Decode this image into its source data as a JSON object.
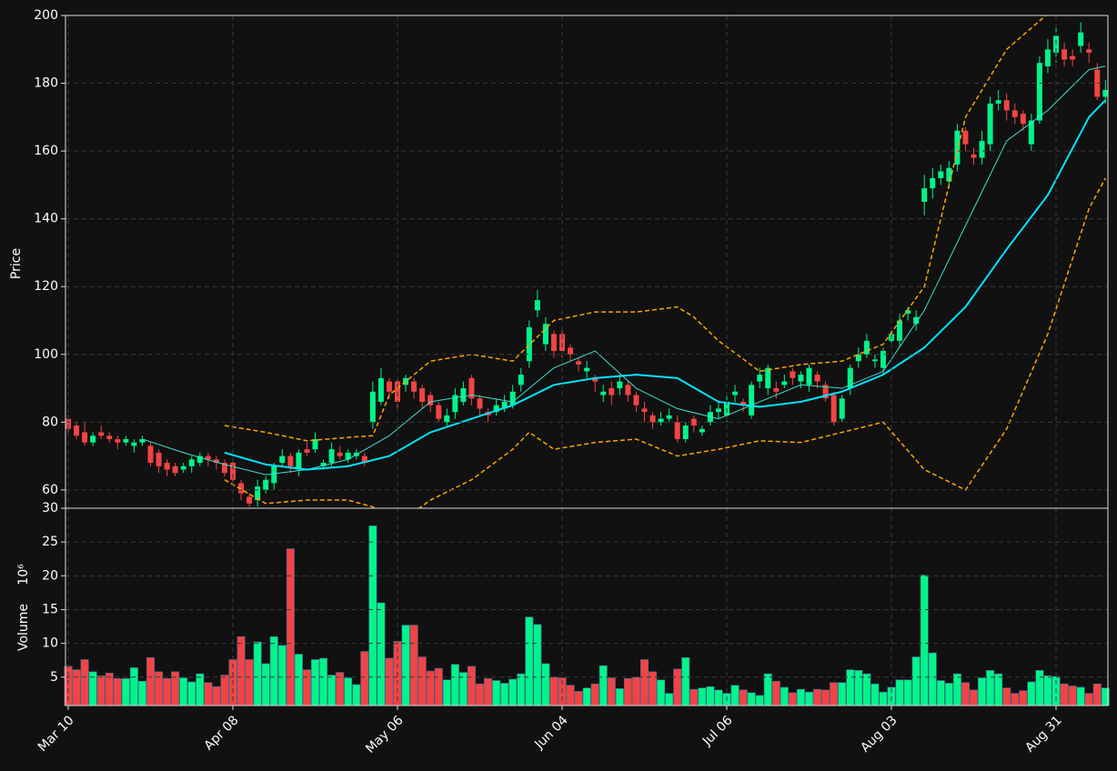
{
  "chart_data": {
    "type": "candlestick",
    "categories": [
      "Mar 10",
      null,
      null,
      null,
      null,
      null,
      null,
      null,
      null,
      null,
      null,
      null,
      null,
      null,
      null,
      null,
      null,
      null,
      null,
      null,
      "Apr 08",
      null,
      null,
      null,
      null,
      null,
      null,
      null,
      null,
      null,
      null,
      null,
      null,
      null,
      null,
      null,
      null,
      null,
      null,
      null,
      "May 06",
      null,
      null,
      null,
      null,
      null,
      null,
      null,
      null,
      null,
      null,
      null,
      null,
      null,
      null,
      null,
      null,
      null,
      null,
      null,
      "Jun 04",
      null,
      null,
      null,
      null,
      null,
      null,
      null,
      null,
      null,
      null,
      null,
      null,
      null,
      null,
      null,
      null,
      null,
      null,
      null,
      "Jul 06",
      null,
      null,
      null,
      null,
      null,
      null,
      null,
      null,
      null,
      null,
      null,
      null,
      null,
      null,
      null,
      null,
      null,
      null,
      null,
      "Aug 03",
      null,
      null,
      null,
      null,
      null,
      null,
      null,
      null,
      null,
      null,
      null,
      null,
      null,
      null,
      null,
      null,
      null,
      null,
      null,
      "Aug 31",
      null,
      null,
      null,
      null,
      null,
      null
    ],
    "open": [
      81,
      79,
      77,
      74,
      77,
      76,
      75,
      74,
      73,
      74,
      73,
      71,
      68,
      67,
      66,
      67,
      68,
      70,
      69,
      68,
      68,
      62,
      58,
      57,
      60,
      62,
      68,
      70,
      66,
      72,
      72,
      67,
      68,
      71,
      69,
      70,
      70,
      80,
      86,
      92,
      92,
      91,
      92,
      90,
      88,
      85,
      80,
      83,
      86,
      93,
      87,
      83,
      83,
      84,
      85,
      91,
      98,
      113,
      103,
      106,
      106,
      102,
      98,
      95,
      93,
      88,
      90,
      90,
      91,
      88,
      84,
      82,
      80,
      81,
      80,
      75,
      81,
      77,
      80,
      83,
      82,
      88,
      86,
      82,
      92,
      90,
      90,
      91,
      95,
      92,
      91,
      94,
      91,
      88,
      81,
      90,
      98,
      100,
      98,
      96,
      104,
      104,
      112,
      109,
      145,
      149,
      152,
      151,
      156,
      166,
      159,
      158,
      162,
      174,
      175,
      172,
      171,
      162,
      169,
      185,
      189,
      190,
      188,
      191,
      190,
      184,
      176
    ],
    "close": [
      78,
      76,
      74,
      76,
      76,
      75,
      74,
      75,
      74,
      75,
      68,
      67,
      66,
      65,
      67,
      69,
      70,
      69,
      68,
      65,
      63,
      59,
      56,
      61,
      63,
      67,
      70,
      67,
      71,
      71,
      75,
      68,
      72,
      70,
      71,
      71,
      68,
      89,
      93,
      89,
      86,
      93,
      89,
      86,
      85,
      81,
      82,
      88,
      90,
      87,
      84,
      82,
      85,
      86,
      89,
      94,
      108,
      116,
      109,
      101,
      101,
      100,
      97,
      96,
      92,
      89,
      88,
      92,
      88,
      85,
      83,
      80,
      81,
      82,
      75,
      79,
      79,
      78,
      83,
      84,
      86,
      89,
      85,
      91,
      94,
      96,
      89,
      92,
      93,
      94,
      96,
      92,
      87,
      80,
      87,
      96,
      100,
      104,
      98.5,
      101,
      106,
      110,
      113,
      111,
      149,
      152,
      154,
      155,
      166,
      162,
      158,
      163,
      174,
      175,
      172,
      170,
      168,
      169,
      186,
      190,
      194,
      187,
      187,
      195,
      189,
      176,
      178
    ],
    "high": [
      82,
      80,
      80,
      77,
      79,
      77,
      76,
      76,
      75,
      76,
      74,
      72,
      69,
      68,
      68,
      70,
      71,
      71,
      70,
      69,
      69,
      63,
      59,
      63,
      64,
      68,
      72,
      71,
      72,
      74,
      77,
      69,
      74,
      73,
      72,
      72,
      71,
      92,
      96,
      93,
      93,
      94,
      93,
      91,
      89,
      86,
      84,
      90,
      92,
      94,
      88,
      84,
      87,
      88,
      91,
      96,
      110,
      119,
      111,
      107,
      107,
      103,
      99,
      98,
      94,
      91,
      92,
      94,
      92,
      89,
      86,
      83,
      83,
      84,
      82,
      80,
      82,
      79,
      85,
      86,
      88,
      91,
      87,
      92,
      96,
      97,
      92,
      94,
      96,
      95,
      97,
      95,
      92,
      89,
      88,
      97,
      102,
      106,
      100,
      102,
      108,
      112,
      114,
      113,
      153,
      155,
      156,
      157,
      168,
      167,
      161,
      166,
      176,
      178,
      177,
      174,
      172,
      171,
      188,
      193,
      197,
      192,
      190,
      198,
      192,
      186,
      181
    ],
    "low": [
      77,
      75,
      73,
      73,
      75,
      74,
      72,
      73,
      71,
      73,
      67,
      65,
      64,
      64,
      65,
      65,
      67,
      67,
      66,
      64,
      61,
      57,
      55,
      55,
      59,
      60,
      67,
      65,
      64,
      70,
      71,
      66,
      67,
      69,
      68,
      69,
      67,
      78,
      85,
      87,
      84,
      89,
      87,
      84,
      83,
      80,
      79,
      81,
      85,
      85,
      82,
      80,
      82,
      83,
      84,
      89,
      96,
      111,
      101,
      99,
      99,
      98,
      95,
      93,
      89,
      86,
      85,
      88,
      86,
      83,
      80,
      78,
      79,
      80,
      74,
      74,
      77,
      76,
      79,
      81,
      80,
      86,
      83,
      81,
      90,
      88,
      87,
      90,
      91,
      90,
      89,
      90,
      86,
      79,
      80,
      88,
      96,
      99,
      96,
      94,
      102,
      102,
      110,
      107,
      141,
      146,
      150,
      149,
      154,
      160,
      156,
      156,
      160,
      172,
      169,
      168,
      166,
      160,
      168,
      183,
      186,
      185,
      185,
      189,
      186,
      175,
      174
    ],
    "volume": [
      6.6,
      6.1,
      7.6,
      5.8,
      5.2,
      5.6,
      4.8,
      4.8,
      6.4,
      4.4,
      7.9,
      5.8,
      4.8,
      5.8,
      4.9,
      4.3,
      5.5,
      4.2,
      3.6,
      5.3,
      7.6,
      11,
      7.6,
      10.2,
      7,
      11,
      9.7,
      24,
      8.4,
      6.1,
      7.6,
      7.8,
      5.3,
      5.7,
      4.9,
      3.9,
      8.8,
      27.4,
      16,
      7.8,
      10.3,
      12.7,
      12.7,
      8,
      5.9,
      6.3,
      4.6,
      6.9,
      5.7,
      6.6,
      4,
      4.8,
      4.5,
      4.1,
      4.7,
      5.5,
      13.9,
      12.8,
      7,
      5,
      4.9,
      3.8,
      2.9,
      3.4,
      4,
      6.7,
      4.9,
      3.3,
      4.8,
      5,
      7.6,
      5.8,
      4.6,
      2.6,
      6.2,
      7.9,
      3.2,
      3.4,
      3.6,
      3.1,
      2.6,
      3.8,
      3.1,
      2.7,
      2.3,
      5.5,
      4.4,
      3.5,
      2.7,
      3.2,
      2.8,
      3.2,
      3.1,
      4.2,
      4.2,
      6.1,
      6,
      5.5,
      4,
      2.8,
      3.5,
      4.6,
      4.6,
      8,
      20.1,
      8.6,
      4.5,
      4.1,
      5.5,
      4.2,
      3.1,
      4.9,
      6,
      5.5,
      3.4,
      2.6,
      3,
      4.3,
      6,
      5.2,
      5.1,
      4,
      3.7,
      3.5,
      2.6,
      4,
      3.4
    ],
    "up_color": "#00f58a",
    "down_color": "#f24444",
    "ylabel": "Price",
    "ylim": [
      54.6,
      200
    ],
    "yticks": [
      60,
      80,
      100,
      120,
      140,
      160,
      180,
      200
    ],
    "volume_ylabel": "Volume",
    "volume_scale": "10⁶",
    "volume_ylim": [
      0.8,
      30
    ],
    "volume_yticks": [
      5,
      10,
      15,
      20,
      25,
      30
    ],
    "grid": true,
    "overlays": [
      {
        "color": "#40e0d0",
        "width": 1,
        "dash": false,
        "x": [
          9,
          14,
          19,
          24,
          29,
          34,
          39,
          44,
          49,
          54,
          59,
          64,
          69,
          74,
          79,
          84,
          89,
          94,
          99,
          104,
          109,
          114,
          119,
          124,
          126
        ],
        "values": [
          75,
          71,
          67.5,
          64.5,
          66,
          69,
          76,
          86,
          88,
          86,
          96,
          101,
          90,
          84,
          81,
          86,
          91,
          90,
          95,
          113,
          138,
          163,
          172,
          184,
          185
        ]
      },
      {
        "color": "#00e5ff",
        "width": 2,
        "dash": false,
        "x": [
          19,
          24,
          29,
          34,
          39,
          44,
          49,
          54,
          59,
          64,
          69,
          74,
          79,
          84,
          89,
          94,
          99,
          104,
          109,
          114,
          119,
          124,
          126
        ],
        "values": [
          71,
          67.5,
          66,
          67,
          70,
          77,
          81,
          85,
          91,
          93,
          94,
          93,
          86,
          84.5,
          86,
          89,
          94,
          102,
          114,
          131,
          147,
          170,
          175
        ]
      },
      {
        "color": "#ffa500",
        "width": 1.5,
        "dash": true,
        "x": [
          19,
          24,
          29,
          34,
          37,
          39,
          44,
          49,
          54,
          59,
          64,
          69,
          74,
          76,
          79,
          84,
          89,
          94,
          99,
          104,
          109,
          114,
          119,
          124,
          126
        ],
        "values": [
          79,
          77,
          74.5,
          75.5,
          76,
          88,
          98,
          100,
          98,
          110,
          112.5,
          112.5,
          114,
          111,
          104,
          95,
          97,
          98,
          103,
          120,
          170,
          190,
          200.5,
          200.5,
          200.5
        ]
      },
      {
        "color": "#ffa500",
        "width": 1.5,
        "dash": true,
        "x": [
          19,
          24,
          29,
          34,
          37,
          40,
          44,
          49,
          54,
          56,
          59,
          64,
          69,
          74,
          79,
          84,
          89,
          94,
          99,
          104,
          109,
          114,
          119,
          124,
          126
        ],
        "values": [
          63,
          56,
          57,
          57,
          55,
          50,
          57,
          63,
          72,
          77,
          72,
          74,
          75,
          70,
          72,
          74.5,
          74,
          77,
          80,
          66,
          60,
          78,
          106,
          143,
          152
        ]
      }
    ]
  }
}
